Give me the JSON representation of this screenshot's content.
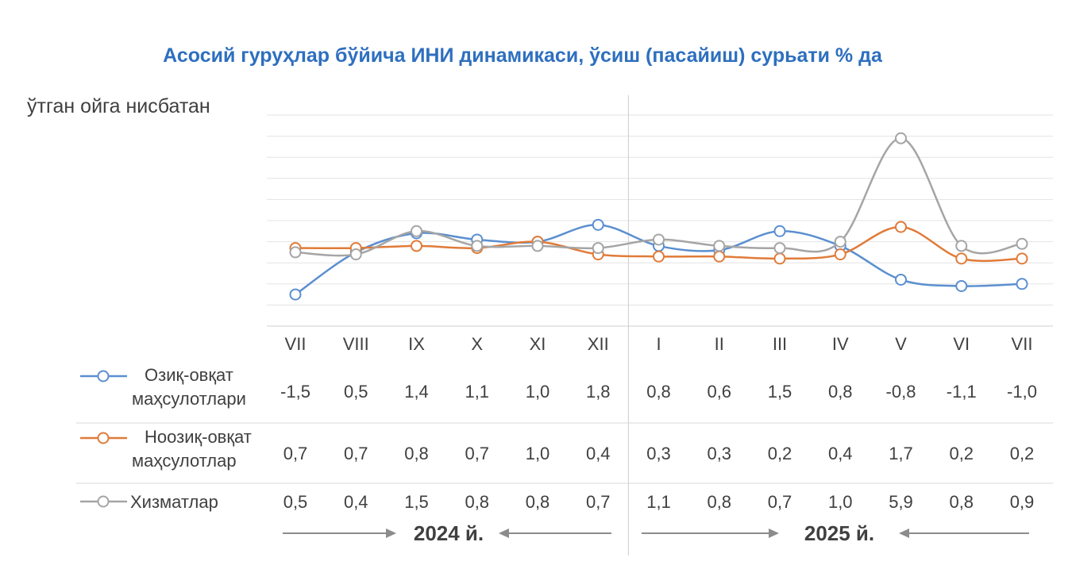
{
  "chart_data": {
    "type": "line",
    "title": "Асосий гуруҳлар бўйича ИНИ динамикаси, ўсиш (пасайиш) сурьати % да",
    "subtitle": "ўтган ойга нисбатан",
    "categories": [
      "VII",
      "VIII",
      "IX",
      "X",
      "XI",
      "XII",
      "I",
      "II",
      "III",
      "IV",
      "V",
      "VI",
      "VII"
    ],
    "series": [
      {
        "name_lines": [
          "Озиқ-овқат",
          "маҳсулотлари"
        ],
        "color": "#5b8fd0",
        "values": [
          -1.5,
          0.5,
          1.4,
          1.1,
          1.0,
          1.8,
          0.8,
          0.6,
          1.5,
          0.8,
          -0.8,
          -1.1,
          -1.0
        ],
        "labels": [
          "-1,5",
          "0,5",
          "1,4",
          "1,1",
          "1,0",
          "1,8",
          "0,8",
          "0,6",
          "1,5",
          "0,8",
          "-0,8",
          "-1,1",
          "-1,0"
        ]
      },
      {
        "name_lines": [
          "Ноозиқ-овқат",
          "маҳсулотлар"
        ],
        "color": "#e07b39",
        "values": [
          0.7,
          0.7,
          0.8,
          0.7,
          1.0,
          0.4,
          0.3,
          0.3,
          0.2,
          0.4,
          1.7,
          0.2,
          0.2
        ],
        "labels": [
          "0,7",
          "0,7",
          "0,8",
          "0,7",
          "1,0",
          "0,4",
          "0,3",
          "0,3",
          "0,2",
          "0,4",
          "1,7",
          "0,2",
          "0,2"
        ]
      },
      {
        "name_lines": [
          "Хизматлар"
        ],
        "color": "#a5a5a5",
        "values": [
          0.5,
          0.4,
          1.5,
          0.8,
          0.8,
          0.7,
          1.1,
          0.8,
          0.7,
          1.0,
          5.9,
          0.8,
          0.9
        ],
        "labels": [
          "0,5",
          "0,4",
          "1,5",
          "0,8",
          "0,8",
          "0,7",
          "1,1",
          "0,8",
          "0,7",
          "1,0",
          "5,9",
          "0,8",
          "0,9"
        ]
      }
    ],
    "year_labels": [
      "2024 й.",
      "2025 й."
    ],
    "ylim": [
      -3,
      7
    ],
    "grid": true,
    "legend": "table-below"
  }
}
